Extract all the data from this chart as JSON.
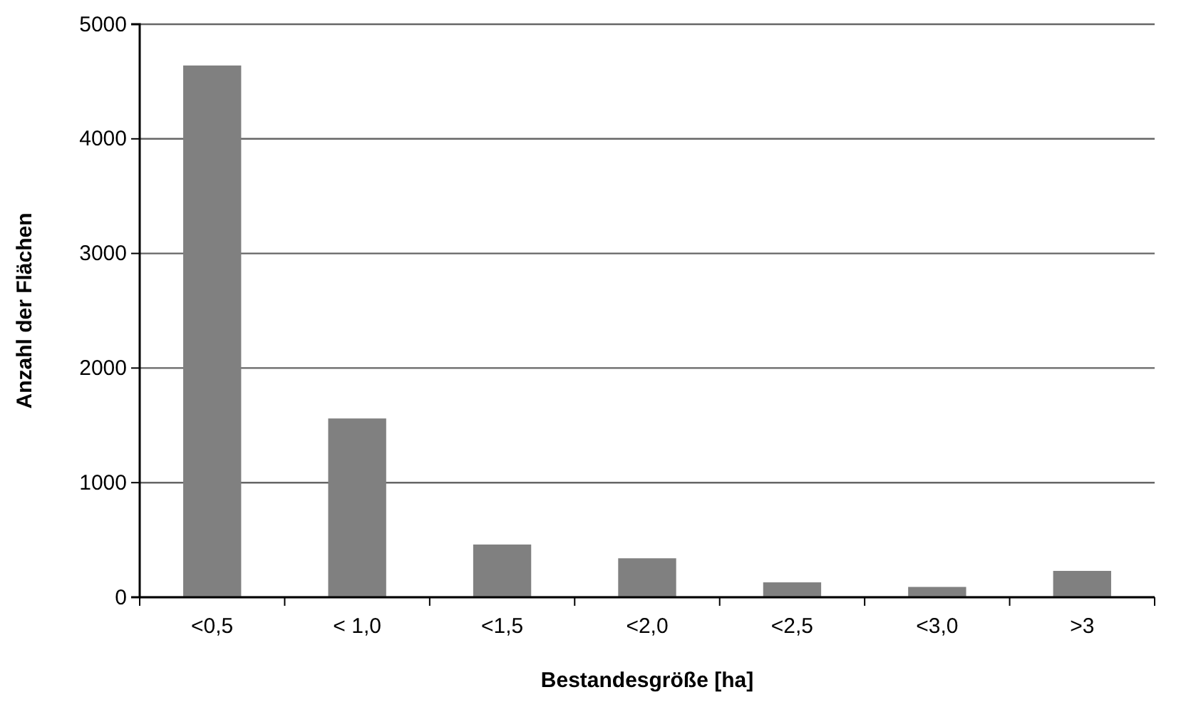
{
  "chart_data": {
    "type": "bar",
    "xlabel": "Bestandesgröße [ha]",
    "ylabel": "Anzahl der Flächen",
    "categories": [
      "<0,5",
      "< 1,0",
      "<1,5",
      "<2,0",
      "<2,5",
      "<3,0",
      ">3"
    ],
    "values": [
      4640,
      1560,
      460,
      340,
      130,
      90,
      230
    ],
    "color": "#808080",
    "ylim": [
      0,
      5000
    ],
    "yticks": [
      0,
      1000,
      2000,
      3000,
      4000,
      5000
    ],
    "grid": "y"
  }
}
